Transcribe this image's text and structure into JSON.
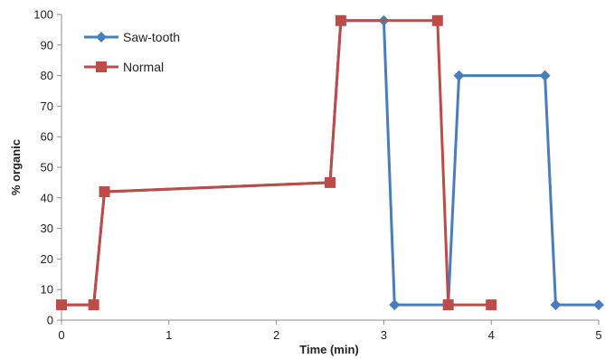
{
  "chart_data": {
    "type": "line",
    "title": "",
    "xlabel": "Time (min)",
    "ylabel": "% organic",
    "xlim": [
      0,
      5
    ],
    "ylim": [
      0,
      100
    ],
    "xticks": [
      0,
      1,
      2,
      3,
      4,
      5
    ],
    "yticks": [
      0,
      10,
      20,
      30,
      40,
      50,
      60,
      70,
      80,
      90,
      100
    ],
    "grid": false,
    "legend": "top-left",
    "series": [
      {
        "name": "Saw-tooth",
        "color": "#4a7ebb",
        "marker": "diamond",
        "x": [
          0,
          0.3,
          0.4,
          2.5,
          2.6,
          3.0,
          3.1,
          3.6,
          3.7,
          4.5,
          4.6,
          5.0
        ],
        "y": [
          5,
          5,
          42,
          45,
          98,
          98,
          5,
          5,
          80,
          80,
          5,
          5
        ]
      },
      {
        "name": "Normal",
        "color": "#be4b48",
        "marker": "square",
        "x": [
          0,
          0.3,
          0.4,
          2.5,
          2.6,
          3.5,
          3.6,
          4.0
        ],
        "y": [
          5,
          5,
          42,
          45,
          98,
          98,
          5,
          5
        ]
      }
    ]
  }
}
